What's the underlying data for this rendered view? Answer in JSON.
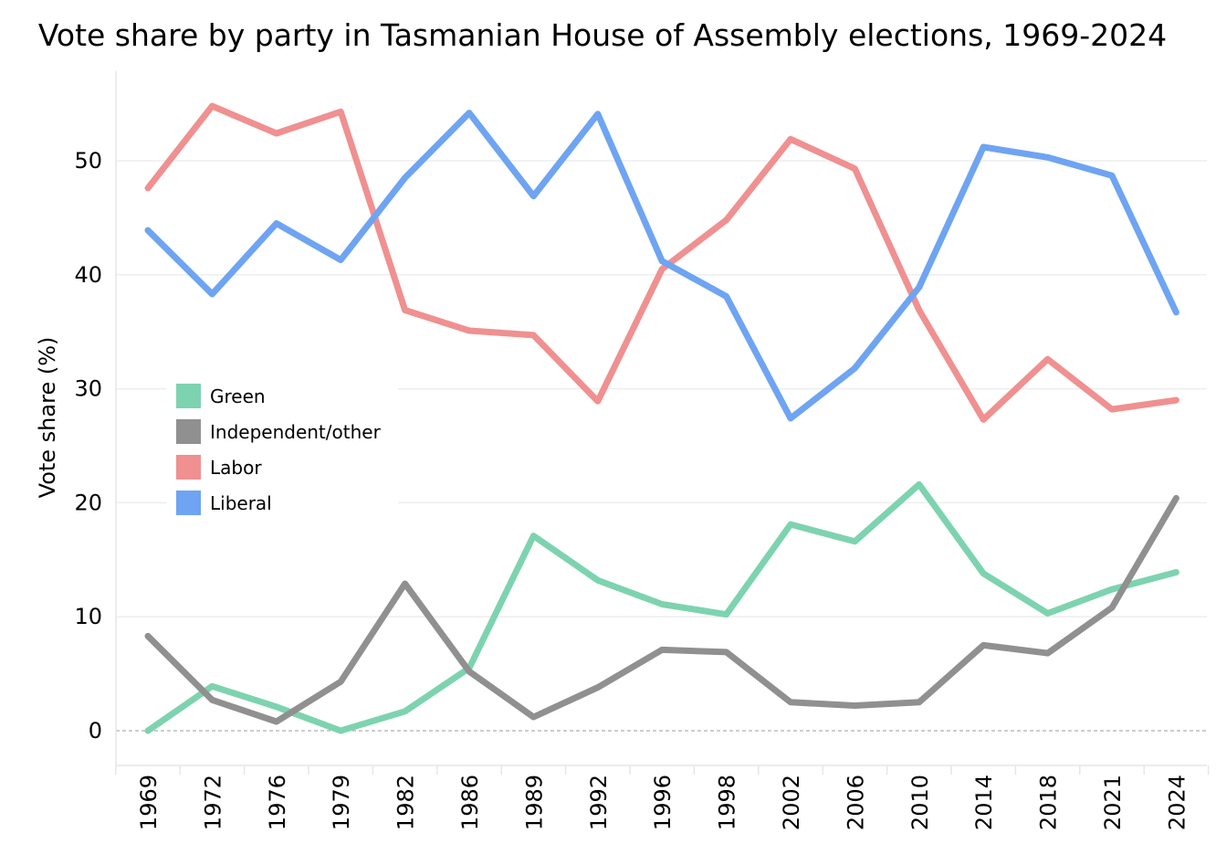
{
  "chart_data": {
    "type": "line",
    "title": "Vote share by party in Tasmanian House of Assembly elections, 1969-2024",
    "xlabel": "",
    "ylabel": "Vote share (%)",
    "ylim": [
      -3,
      58
    ],
    "yticks": [
      0,
      10,
      20,
      30,
      40,
      50
    ],
    "grid": true,
    "legend_position": "left-middle",
    "categories": [
      "1969",
      "1972",
      "1976",
      "1979",
      "1982",
      "1986",
      "1989",
      "1992",
      "1996",
      "1998",
      "2002",
      "2006",
      "2010",
      "2014",
      "2018",
      "2021",
      "2024"
    ],
    "series": [
      {
        "name": "Green",
        "color": "#7dd3b0",
        "values": [
          0.0,
          3.9,
          2.1,
          0.0,
          1.7,
          5.5,
          17.1,
          13.2,
          11.1,
          10.2,
          18.1,
          16.6,
          21.6,
          13.8,
          10.3,
          12.4,
          13.9
        ]
      },
      {
        "name": "Independent/other",
        "color": "#909090",
        "values": [
          8.3,
          2.7,
          0.8,
          4.3,
          12.9,
          5.2,
          1.2,
          3.8,
          7.1,
          6.9,
          2.5,
          2.2,
          2.5,
          7.5,
          6.8,
          10.8,
          20.4
        ]
      },
      {
        "name": "Labor",
        "color": "#f09090",
        "values": [
          47.6,
          54.8,
          52.4,
          54.3,
          36.9,
          35.1,
          34.7,
          28.9,
          40.5,
          44.8,
          51.9,
          49.3,
          36.9,
          27.3,
          32.6,
          28.2,
          29.0
        ]
      },
      {
        "name": "Liberal",
        "color": "#6ea4f2",
        "values": [
          43.9,
          38.3,
          44.5,
          41.3,
          48.5,
          54.2,
          46.9,
          54.1,
          41.2,
          38.1,
          27.4,
          31.8,
          38.9,
          51.2,
          50.3,
          48.7,
          36.7
        ]
      }
    ]
  }
}
